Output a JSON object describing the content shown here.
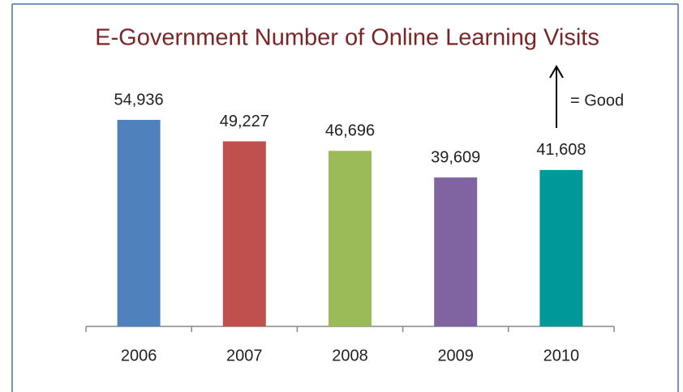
{
  "chart_data": {
    "type": "bar",
    "title": "E-Government Number of Online Learning Visits",
    "categories": [
      "2006",
      "2007",
      "2008",
      "2009",
      "2010"
    ],
    "values": [
      54936,
      49227,
      46696,
      39609,
      41608
    ],
    "value_labels": [
      "54,936",
      "49,227",
      "46,696",
      "39,609",
      "41,608"
    ],
    "colors": [
      "#4f81bd",
      "#c0504d",
      "#9bbb59",
      "#8064a2",
      "#009999"
    ],
    "annotation": "= Good"
  }
}
